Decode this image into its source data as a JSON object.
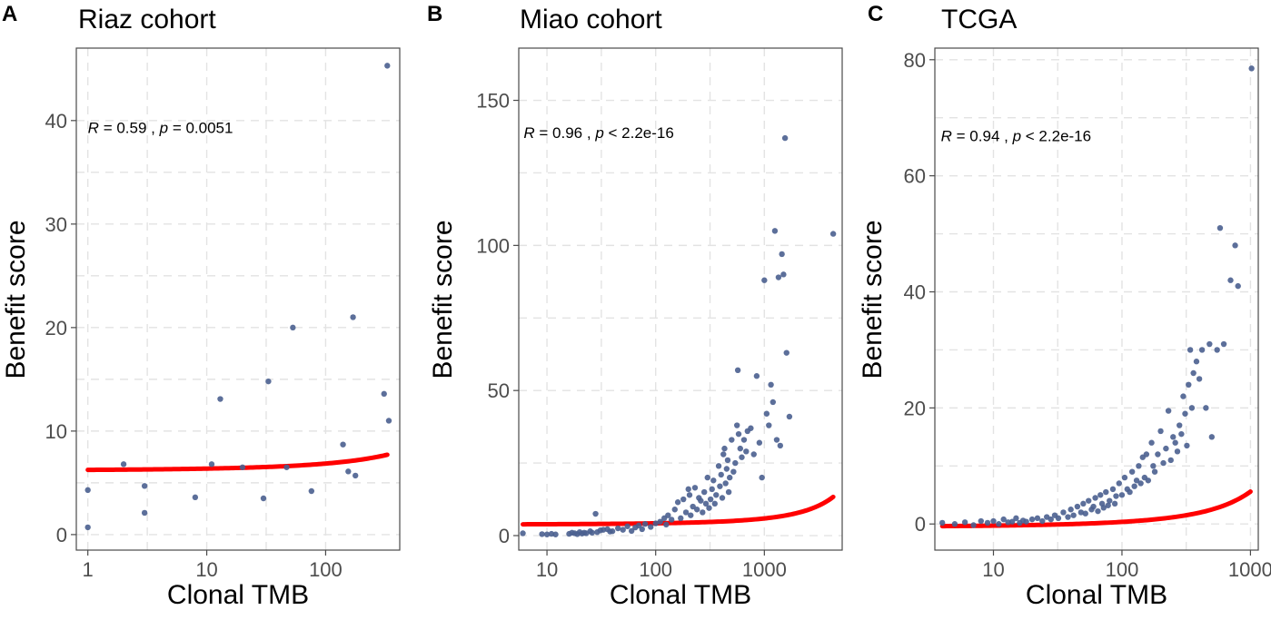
{
  "chart_data": [
    {
      "type": "scatter",
      "panel": "A",
      "title": "Riaz cohort",
      "xlabel": "Clonal TMB",
      "ylabel": "Benefit score",
      "x_scale": "log10",
      "xlim": [
        0.8,
        420
      ],
      "ylim": [
        -1.5,
        47
      ],
      "x_ticks": [
        1,
        10,
        100
      ],
      "x_tick_labels": [
        "1",
        "10",
        "100"
      ],
      "y_ticks": [
        0,
        10,
        20,
        30,
        40
      ],
      "y_tick_labels": [
        "0",
        "10",
        "20",
        "30",
        "40"
      ],
      "annotation": {
        "r_label": "R",
        "r_value": "= 0.59 ,",
        "p_label": "p",
        "p_value": "= 0.0051",
        "ax": 1.0,
        "ay": 38.8
      },
      "fit": {
        "a": 5.2,
        "b": 0.0507,
        "x_from": 1,
        "x_to": 330
      },
      "points": [
        [
          1,
          4.3
        ],
        [
          1,
          0.7
        ],
        [
          2,
          6.8
        ],
        [
          3,
          4.7
        ],
        [
          3,
          2.1
        ],
        [
          8,
          3.6
        ],
        [
          11,
          6.8
        ],
        [
          13,
          13.1
        ],
        [
          20,
          6.5
        ],
        [
          30,
          3.5
        ],
        [
          33,
          14.8
        ],
        [
          47,
          6.5
        ],
        [
          53,
          20.0
        ],
        [
          76,
          4.2
        ],
        [
          140,
          8.7
        ],
        [
          155,
          6.1
        ],
        [
          170,
          21.0
        ],
        [
          178,
          5.7
        ],
        [
          310,
          13.6
        ],
        [
          330,
          45.3
        ],
        [
          340,
          11.0
        ]
      ]
    },
    {
      "type": "scatter",
      "panel": "B",
      "title": "Miao cohort",
      "xlabel": "Clonal TMB",
      "ylabel": "Benefit score",
      "x_scale": "log10",
      "xlim": [
        5.5,
        5200
      ],
      "ylim": [
        -5,
        168
      ],
      "x_ticks": [
        10,
        100,
        1000
      ],
      "x_tick_labels": [
        "10",
        "100",
        "1000"
      ],
      "y_ticks": [
        0,
        50,
        100,
        150
      ],
      "y_tick_labels": [
        "0",
        "50",
        "100",
        "150"
      ],
      "annotation": {
        "r_label": "R",
        "r_value": "= 0.96 ,",
        "p_label": "p",
        "p_value": "< 2.2e-16",
        "ax": 6.1,
        "ay": 137
      },
      "fit": {
        "a": 2.8,
        "b": 0.0359,
        "x_from": 6,
        "x_to": 4300
      },
      "points": [
        [
          6,
          0.8
        ],
        [
          9,
          0.5
        ],
        [
          10,
          0.4
        ],
        [
          11,
          0.6
        ],
        [
          12,
          0.4
        ],
        [
          16,
          0.6
        ],
        [
          17,
          1.0
        ],
        [
          18,
          0.8
        ],
        [
          19,
          0.5
        ],
        [
          20,
          1.2
        ],
        [
          21,
          0.7
        ],
        [
          22,
          1.0
        ],
        [
          23,
          0.8
        ],
        [
          25,
          1.5
        ],
        [
          26,
          1.0
        ],
        [
          28,
          7.5
        ],
        [
          29,
          1.2
        ],
        [
          31,
          1.8
        ],
        [
          33,
          2.0
        ],
        [
          36,
          2.2
        ],
        [
          38,
          1.4
        ],
        [
          40,
          1.5
        ],
        [
          45,
          2.5
        ],
        [
          50,
          2.0
        ],
        [
          55,
          3.2
        ],
        [
          60,
          1.6
        ],
        [
          65,
          2.8
        ],
        [
          70,
          3.5
        ],
        [
          75,
          2.2
        ],
        [
          80,
          4.0
        ],
        [
          90,
          3.0
        ],
        [
          100,
          4.2
        ],
        [
          110,
          4.8
        ],
        [
          120,
          6.0
        ],
        [
          125,
          3.8
        ],
        [
          130,
          7.0
        ],
        [
          140,
          5.5
        ],
        [
          150,
          9.0
        ],
        [
          160,
          11.5
        ],
        [
          170,
          6.0
        ],
        [
          180,
          12.5
        ],
        [
          190,
          8.0
        ],
        [
          200,
          16.0
        ],
        [
          205,
          14.0
        ],
        [
          210,
          7.0
        ],
        [
          220,
          10.0
        ],
        [
          230,
          16.5
        ],
        [
          240,
          9.0
        ],
        [
          250,
          13.0
        ],
        [
          260,
          12.0
        ],
        [
          270,
          8.0
        ],
        [
          280,
          15.0
        ],
        [
          290,
          11.0
        ],
        [
          300,
          20.0
        ],
        [
          310,
          9.5
        ],
        [
          320,
          12.5
        ],
        [
          330,
          16.0
        ],
        [
          340,
          19.0
        ],
        [
          350,
          11.0
        ],
        [
          360,
          14.0
        ],
        [
          380,
          24.0
        ],
        [
          390,
          17.0
        ],
        [
          400,
          21.0
        ],
        [
          410,
          13.0
        ],
        [
          420,
          28.0
        ],
        [
          430,
          30.0
        ],
        [
          440,
          18.0
        ],
        [
          450,
          23.0
        ],
        [
          460,
          26.0
        ],
        [
          470,
          15.0
        ],
        [
          480,
          20.0
        ],
        [
          500,
          33.0
        ],
        [
          520,
          22.0
        ],
        [
          540,
          25.0
        ],
        [
          560,
          38.0
        ],
        [
          570,
          57.0
        ],
        [
          580,
          35.0
        ],
        [
          600,
          30.0
        ],
        [
          620,
          27.0
        ],
        [
          650,
          33.0
        ],
        [
          680,
          29.0
        ],
        [
          700,
          36.0
        ],
        [
          750,
          37.0
        ],
        [
          800,
          28.0
        ],
        [
          850,
          55.0
        ],
        [
          900,
          32.0
        ],
        [
          950,
          20.0
        ],
        [
          1000,
          88.0
        ],
        [
          1050,
          42.0
        ],
        [
          1100,
          38.0
        ],
        [
          1150,
          52.0
        ],
        [
          1200,
          46.0
        ],
        [
          1250,
          105.0
        ],
        [
          1300,
          33.0
        ],
        [
          1350,
          89.0
        ],
        [
          1400,
          31.0
        ],
        [
          1450,
          97.0
        ],
        [
          1500,
          90.0
        ],
        [
          1550,
          137.0
        ],
        [
          1600,
          63.0
        ],
        [
          1700,
          41.0
        ],
        [
          4300,
          104.0
        ]
      ]
    },
    {
      "type": "scatter",
      "panel": "C",
      "title": "TCGA",
      "xlabel": "Clonal TMB",
      "ylabel": "Benefit score",
      "x_scale": "log10",
      "xlim": [
        3.5,
        1150
      ],
      "ylim": [
        -4.5,
        82
      ],
      "x_ticks": [
        10,
        100,
        1000
      ],
      "x_tick_labels": [
        "10",
        "100",
        "1000"
      ],
      "y_ticks": [
        0,
        20,
        40,
        60,
        80
      ],
      "y_tick_labels": [
        "0",
        "20",
        "40",
        "60",
        "80"
      ],
      "annotation": {
        "r_label": "R",
        "r_value": "= 0.94 ,",
        "p_label": "p",
        "p_value": "< 2.2e-16",
        "ax": 3.9,
        "ay": 66
      },
      "fit": {
        "a": -1.5,
        "b": 0.0619,
        "x_from": 4,
        "x_to": 1000
      },
      "points": [
        [
          4,
          0.2
        ],
        [
          5,
          0.0
        ],
        [
          6,
          0.3
        ],
        [
          7,
          -0.2
        ],
        [
          8,
          0.5
        ],
        [
          9,
          0.2
        ],
        [
          10,
          0.5
        ],
        [
          11,
          0.0
        ],
        [
          12,
          0.8
        ],
        [
          13,
          0.3
        ],
        [
          14,
          0.4
        ],
        [
          15,
          1.0
        ],
        [
          16,
          0.2
        ],
        [
          17,
          0.6
        ],
        [
          18,
          0.4
        ],
        [
          20,
          0.8
        ],
        [
          22,
          1.0
        ],
        [
          24,
          0.5
        ],
        [
          26,
          1.2
        ],
        [
          28,
          0.8
        ],
        [
          30,
          1.5
        ],
        [
          32,
          1.0
        ],
        [
          35,
          2.0
        ],
        [
          38,
          1.2
        ],
        [
          40,
          2.5
        ],
        [
          42,
          1.5
        ],
        [
          45,
          3.0
        ],
        [
          48,
          2.0
        ],
        [
          50,
          3.5
        ],
        [
          52,
          1.8
        ],
        [
          55,
          4.0
        ],
        [
          58,
          2.5
        ],
        [
          60,
          3.0
        ],
        [
          62,
          4.5
        ],
        [
          65,
          2.2
        ],
        [
          68,
          5.0
        ],
        [
          70,
          3.5
        ],
        [
          72,
          2.8
        ],
        [
          75,
          5.5
        ],
        [
          78,
          3.2
        ],
        [
          80,
          4.0
        ],
        [
          85,
          6.0
        ],
        [
          88,
          3.5
        ],
        [
          90,
          4.8
        ],
        [
          95,
          7.0
        ],
        [
          100,
          5.0
        ],
        [
          105,
          8.0
        ],
        [
          110,
          6.0
        ],
        [
          115,
          5.5
        ],
        [
          120,
          9.0
        ],
        [
          125,
          6.5
        ],
        [
          130,
          7.5
        ],
        [
          135,
          10.0
        ],
        [
          140,
          7.0
        ],
        [
          145,
          11.5
        ],
        [
          150,
          8.0
        ],
        [
          155,
          12.0
        ],
        [
          160,
          7.5
        ],
        [
          170,
          14.0
        ],
        [
          175,
          10.0
        ],
        [
          180,
          9.0
        ],
        [
          190,
          12.0
        ],
        [
          200,
          16.0
        ],
        [
          210,
          10.5
        ],
        [
          220,
          13.0
        ],
        [
          230,
          19.5
        ],
        [
          240,
          11.0
        ],
        [
          250,
          15.0
        ],
        [
          260,
          14.0
        ],
        [
          270,
          12.5
        ],
        [
          280,
          17.0
        ],
        [
          290,
          15.5
        ],
        [
          300,
          22.0
        ],
        [
          310,
          19.0
        ],
        [
          320,
          13.5
        ],
        [
          330,
          24.0
        ],
        [
          340,
          30.0
        ],
        [
          350,
          20.0
        ],
        [
          360,
          26.0
        ],
        [
          380,
          28.0
        ],
        [
          400,
          25.0
        ],
        [
          420,
          30.0
        ],
        [
          450,
          20.0
        ],
        [
          480,
          31.0
        ],
        [
          500,
          15.0
        ],
        [
          550,
          30.0
        ],
        [
          580,
          51.0
        ],
        [
          620,
          31.0
        ],
        [
          700,
          42.0
        ],
        [
          760,
          48.0
        ],
        [
          800,
          41.0
        ],
        [
          1020,
          78.5
        ]
      ]
    }
  ]
}
